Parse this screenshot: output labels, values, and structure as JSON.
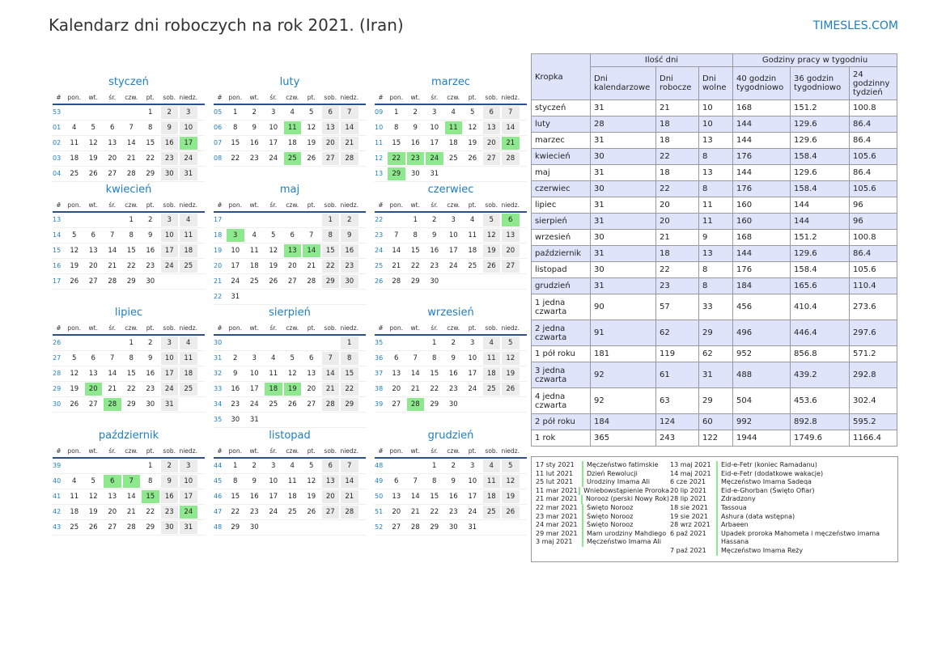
{
  "header": {
    "title": "Kalendarz dni roboczych na rok 2021. (Iran)",
    "site": "TIMESLES.COM"
  },
  "weekday_headers": [
    "#",
    "pon.",
    "wt.",
    "śr.",
    "czw.",
    "pt.",
    "sob.",
    "niedz."
  ],
  "months": [
    {
      "name": "styczeń",
      "weeks": [
        [
          "53",
          "",
          "",
          "",
          "",
          "1",
          "2",
          "3"
        ],
        [
          "01",
          "4",
          "5",
          "6",
          "7",
          "8",
          "9",
          "10"
        ],
        [
          "02",
          "11",
          "12",
          "13",
          "14",
          "15",
          "16",
          "17"
        ],
        [
          "03",
          "18",
          "19",
          "20",
          "21",
          "22",
          "23",
          "24"
        ],
        [
          "04",
          "25",
          "26",
          "27",
          "28",
          "29",
          "30",
          "31"
        ]
      ],
      "holidays": [
        "17"
      ]
    },
    {
      "name": "luty",
      "weeks": [
        [
          "05",
          "1",
          "2",
          "3",
          "4",
          "5",
          "6",
          "7"
        ],
        [
          "06",
          "8",
          "9",
          "10",
          "11",
          "12",
          "13",
          "14"
        ],
        [
          "07",
          "15",
          "16",
          "17",
          "18",
          "19",
          "20",
          "21"
        ],
        [
          "08",
          "22",
          "23",
          "24",
          "25",
          "26",
          "27",
          "28"
        ]
      ],
      "holidays": [
        "11",
        "25"
      ]
    },
    {
      "name": "marzec",
      "weeks": [
        [
          "09",
          "1",
          "2",
          "3",
          "4",
          "5",
          "6",
          "7"
        ],
        [
          "10",
          "8",
          "9",
          "10",
          "11",
          "12",
          "13",
          "14"
        ],
        [
          "11",
          "15",
          "16",
          "17",
          "18",
          "19",
          "20",
          "21"
        ],
        [
          "12",
          "22",
          "23",
          "24",
          "25",
          "26",
          "27",
          "28"
        ],
        [
          "13",
          "29",
          "30",
          "31",
          "",
          "",
          "",
          ""
        ]
      ],
      "holidays": [
        "11",
        "21",
        "22",
        "23",
        "24",
        "29"
      ]
    },
    {
      "name": "kwiecień",
      "weeks": [
        [
          "13",
          "",
          "",
          "",
          "1",
          "2",
          "3",
          "4"
        ],
        [
          "14",
          "5",
          "6",
          "7",
          "8",
          "9",
          "10",
          "11"
        ],
        [
          "15",
          "12",
          "13",
          "14",
          "15",
          "16",
          "17",
          "18"
        ],
        [
          "16",
          "19",
          "20",
          "21",
          "22",
          "23",
          "24",
          "25"
        ],
        [
          "17",
          "26",
          "27",
          "28",
          "29",
          "30",
          "",
          ""
        ]
      ],
      "holidays": []
    },
    {
      "name": "maj",
      "weeks": [
        [
          "17",
          "",
          "",
          "",
          "",
          "",
          "1",
          "2"
        ],
        [
          "18",
          "3",
          "4",
          "5",
          "6",
          "7",
          "8",
          "9"
        ],
        [
          "19",
          "10",
          "11",
          "12",
          "13",
          "14",
          "15",
          "16"
        ],
        [
          "20",
          "17",
          "18",
          "19",
          "20",
          "21",
          "22",
          "23"
        ],
        [
          "21",
          "24",
          "25",
          "26",
          "27",
          "28",
          "29",
          "30"
        ],
        [
          "22",
          "31",
          "",
          "",
          "",
          "",
          "",
          ""
        ]
      ],
      "holidays": [
        "3",
        "13",
        "14"
      ]
    },
    {
      "name": "czerwiec",
      "weeks": [
        [
          "22",
          "",
          "1",
          "2",
          "3",
          "4",
          "5",
          "6"
        ],
        [
          "23",
          "7",
          "8",
          "9",
          "10",
          "11",
          "12",
          "13"
        ],
        [
          "24",
          "14",
          "15",
          "16",
          "17",
          "18",
          "19",
          "20"
        ],
        [
          "25",
          "21",
          "22",
          "23",
          "24",
          "25",
          "26",
          "27"
        ],
        [
          "26",
          "28",
          "29",
          "30",
          "",
          "",
          "",
          ""
        ]
      ],
      "holidays": [
        "6"
      ]
    },
    {
      "name": "lipiec",
      "weeks": [
        [
          "26",
          "",
          "",
          "",
          "1",
          "2",
          "3",
          "4"
        ],
        [
          "27",
          "5",
          "6",
          "7",
          "8",
          "9",
          "10",
          "11"
        ],
        [
          "28",
          "12",
          "13",
          "14",
          "15",
          "16",
          "17",
          "18"
        ],
        [
          "29",
          "19",
          "20",
          "21",
          "22",
          "23",
          "24",
          "25"
        ],
        [
          "30",
          "26",
          "27",
          "28",
          "29",
          "30",
          "31",
          ""
        ]
      ],
      "holidays": [
        "20",
        "28"
      ]
    },
    {
      "name": "sierpień",
      "weeks": [
        [
          "30",
          "",
          "",
          "",
          "",
          "",
          "",
          "1"
        ],
        [
          "31",
          "2",
          "3",
          "4",
          "5",
          "6",
          "7",
          "8"
        ],
        [
          "32",
          "9",
          "10",
          "11",
          "12",
          "13",
          "14",
          "15"
        ],
        [
          "33",
          "16",
          "17",
          "18",
          "19",
          "20",
          "21",
          "22"
        ],
        [
          "34",
          "23",
          "24",
          "25",
          "26",
          "27",
          "28",
          "29"
        ],
        [
          "35",
          "30",
          "31",
          "",
          "",
          "",
          "",
          ""
        ]
      ],
      "holidays": [
        "18",
        "19"
      ]
    },
    {
      "name": "wrzesień",
      "weeks": [
        [
          "35",
          "",
          "",
          "1",
          "2",
          "3",
          "4",
          "5"
        ],
        [
          "36",
          "6",
          "7",
          "8",
          "9",
          "10",
          "11",
          "12"
        ],
        [
          "37",
          "13",
          "14",
          "15",
          "16",
          "17",
          "18",
          "19"
        ],
        [
          "38",
          "20",
          "21",
          "22",
          "23",
          "24",
          "25",
          "26"
        ],
        [
          "39",
          "27",
          "28",
          "29",
          "30",
          "",
          "",
          ""
        ]
      ],
      "holidays": [
        "28"
      ]
    },
    {
      "name": "październik",
      "weeks": [
        [
          "39",
          "",
          "",
          "",
          "",
          "1",
          "2",
          "3"
        ],
        [
          "40",
          "4",
          "5",
          "6",
          "7",
          "8",
          "9",
          "10"
        ],
        [
          "41",
          "11",
          "12",
          "13",
          "14",
          "15",
          "16",
          "17"
        ],
        [
          "42",
          "18",
          "19",
          "20",
          "21",
          "22",
          "23",
          "24"
        ],
        [
          "43",
          "25",
          "26",
          "27",
          "28",
          "29",
          "30",
          "31"
        ]
      ],
      "holidays": [
        "6",
        "7",
        "15",
        "24"
      ]
    },
    {
      "name": "listopad",
      "weeks": [
        [
          "44",
          "1",
          "2",
          "3",
          "4",
          "5",
          "6",
          "7"
        ],
        [
          "45",
          "8",
          "9",
          "10",
          "11",
          "12",
          "13",
          "14"
        ],
        [
          "46",
          "15",
          "16",
          "17",
          "18",
          "19",
          "20",
          "21"
        ],
        [
          "47",
          "22",
          "23",
          "24",
          "25",
          "26",
          "27",
          "28"
        ],
        [
          "48",
          "29",
          "30",
          "",
          "",
          "",
          "",
          ""
        ]
      ],
      "holidays": []
    },
    {
      "name": "grudzień",
      "weeks": [
        [
          "48",
          "",
          "",
          "1",
          "2",
          "3",
          "4",
          "5"
        ],
        [
          "49",
          "6",
          "7",
          "8",
          "9",
          "10",
          "11",
          "12"
        ],
        [
          "50",
          "13",
          "14",
          "15",
          "16",
          "17",
          "18",
          "19"
        ],
        [
          "51",
          "20",
          "21",
          "22",
          "23",
          "24",
          "25",
          "26"
        ],
        [
          "52",
          "27",
          "28",
          "29",
          "30",
          "31",
          "",
          ""
        ]
      ],
      "holidays": []
    }
  ],
  "stats": {
    "headers": {
      "period": "Kropka",
      "days_group": "Ilość dni",
      "hours_group": "Godziny pracy w tygodniu",
      "calendar": "Dni kalendarzowe",
      "working": "Dni robocze",
      "off": "Dni wolne",
      "h40": "40 godzin tygodniowo",
      "h36": "36 godzin tygodniowo",
      "h24": "24 godzinny tydzień"
    },
    "rows": [
      [
        "styczeń",
        "31",
        "21",
        "10",
        "168",
        "151.2",
        "100.8"
      ],
      [
        "luty",
        "28",
        "18",
        "10",
        "144",
        "129.6",
        "86.4"
      ],
      [
        "marzec",
        "31",
        "18",
        "13",
        "144",
        "129.6",
        "86.4"
      ],
      [
        "kwiecień",
        "30",
        "22",
        "8",
        "176",
        "158.4",
        "105.6"
      ],
      [
        "maj",
        "31",
        "18",
        "13",
        "144",
        "129.6",
        "86.4"
      ],
      [
        "czerwiec",
        "30",
        "22",
        "8",
        "176",
        "158.4",
        "105.6"
      ],
      [
        "lipiec",
        "31",
        "20",
        "11",
        "160",
        "144",
        "96"
      ],
      [
        "sierpień",
        "31",
        "20",
        "11",
        "160",
        "144",
        "96"
      ],
      [
        "wrzesień",
        "30",
        "21",
        "9",
        "168",
        "151.2",
        "100.8"
      ],
      [
        "październik",
        "31",
        "18",
        "13",
        "144",
        "129.6",
        "86.4"
      ],
      [
        "listopad",
        "30",
        "22",
        "8",
        "176",
        "158.4",
        "105.6"
      ],
      [
        "grudzień",
        "31",
        "23",
        "8",
        "184",
        "165.6",
        "110.4"
      ],
      [
        "1 jedna czwarta",
        "90",
        "57",
        "33",
        "456",
        "410.4",
        "273.6"
      ],
      [
        "2 jedna czwarta",
        "91",
        "62",
        "29",
        "496",
        "446.4",
        "297.6"
      ],
      [
        "1 pół roku",
        "181",
        "119",
        "62",
        "952",
        "856.8",
        "571.2"
      ],
      [
        "3 jedna czwarta",
        "92",
        "61",
        "31",
        "488",
        "439.2",
        "292.8"
      ],
      [
        "4 jedna czwarta",
        "92",
        "63",
        "29",
        "504",
        "453.6",
        "302.4"
      ],
      [
        "2 pół roku",
        "184",
        "124",
        "60",
        "992",
        "892.8",
        "595.2"
      ],
      [
        "1 rok",
        "365",
        "243",
        "122",
        "1944",
        "1749.6",
        "1166.4"
      ]
    ]
  },
  "holidays_list": {
    "left": [
      [
        "17 sty 2021",
        "Męczeństwo fatimskie"
      ],
      [
        "11 lut 2021",
        "Dzień Rewolucji"
      ],
      [
        "25 lut 2021",
        "Urodziny Imama Ali"
      ],
      [
        "11 mar 2021",
        "Wniebowstąpienie Proroka"
      ],
      [
        "21 mar 2021",
        "Norooz (perski Nowy Rok)"
      ],
      [
        "22 mar 2021",
        "Święto Norooz"
      ],
      [
        "23 mar 2021",
        "Święto Norooz"
      ],
      [
        "24 mar 2021",
        "Święto Norooz"
      ],
      [
        "29 mar 2021",
        "Mam urodziny Mahdiego"
      ],
      [
        "3 maj 2021",
        "Męczeństwo Imama Ali"
      ]
    ],
    "right": [
      [
        "13 maj 2021",
        "Eid-e-Fetr (koniec Ramadanu)"
      ],
      [
        "14 maj 2021",
        "Eid-e-Fetr (dodatkowe wakacje)"
      ],
      [
        "6 cze 2021",
        "Męczeństwo Imama Sadeqa"
      ],
      [
        "20 lip 2021",
        "Eid-e-Ghorban (Święto Ofiar)"
      ],
      [
        "28 lip 2021",
        "Zdradzony"
      ],
      [
        "18 sie 2021",
        "Tassoua"
      ],
      [
        "19 sie 2021",
        "Ashura (data wstępna)"
      ],
      [
        "28 wrz 2021",
        "Arbaeen"
      ],
      [
        "6 paź 2021",
        "Upadek proroka Mahometa i męczeństwo imama Hassana"
      ],
      [
        "7 paź 2021",
        "Męczeństwo Imama Reży"
      ]
    ]
  }
}
